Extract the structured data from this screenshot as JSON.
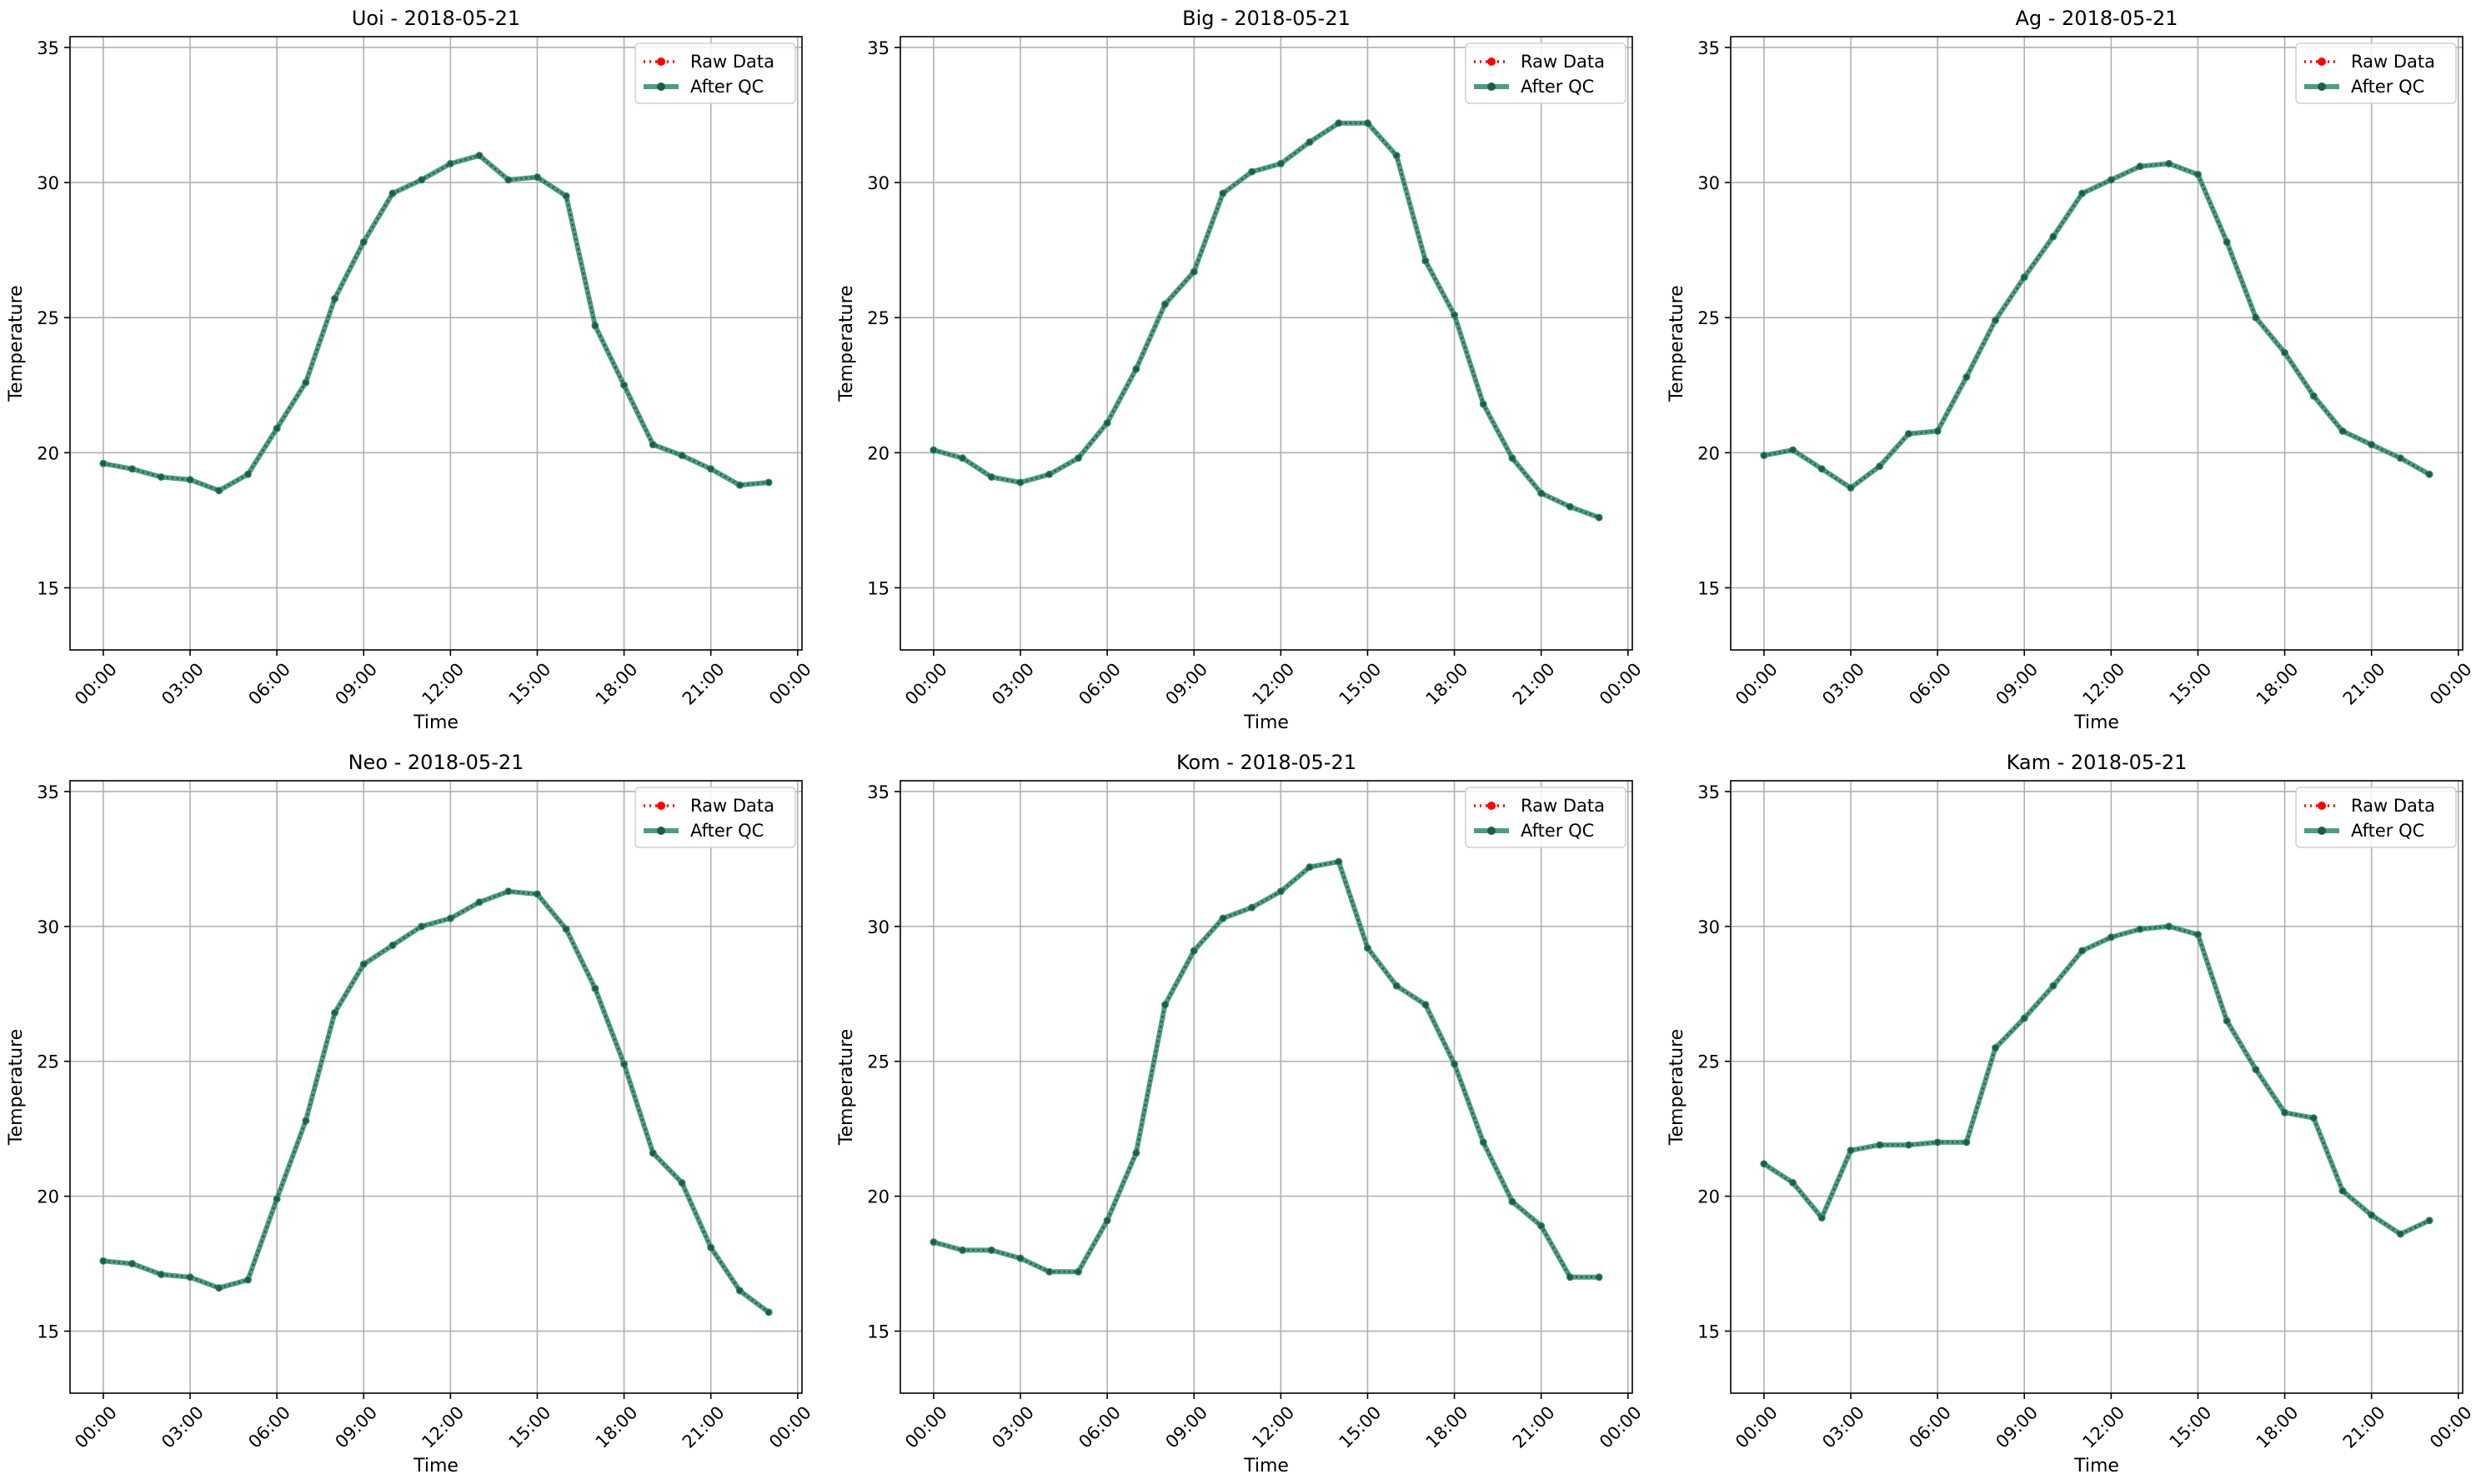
{
  "chart_data": [
    {
      "type": "line",
      "title": "Uoi - 2018-05-21",
      "xlabel": "Time",
      "ylabel": "Temperature",
      "ylim": [
        12.7,
        35.4
      ],
      "yticks": [
        15,
        20,
        25,
        30,
        35
      ],
      "xticks": [
        "00:00",
        "03:00",
        "06:00",
        "09:00",
        "12:00",
        "15:00",
        "18:00",
        "21:00",
        "00:00"
      ],
      "grid": true,
      "legend_position": "top-right",
      "series": [
        {
          "name": "Raw Data",
          "color": "#ff0000",
          "style": "dotted",
          "values": [
            19.6,
            19.4,
            19.1,
            19.0,
            18.6,
            19.2,
            20.9,
            22.6,
            25.7,
            27.8,
            29.6,
            30.1,
            30.7,
            31.0,
            30.1,
            30.2,
            29.5,
            24.7,
            22.5,
            20.3,
            19.9,
            19.4,
            18.8,
            18.9
          ]
        },
        {
          "name": "After QC",
          "color": "#2e8b6e",
          "style": "solid",
          "values": [
            19.6,
            19.4,
            19.1,
            19.0,
            18.6,
            19.2,
            20.9,
            22.6,
            25.7,
            27.8,
            29.6,
            30.1,
            30.7,
            31.0,
            30.1,
            30.2,
            29.5,
            24.7,
            22.5,
            20.3,
            19.9,
            19.4,
            18.8,
            18.9
          ]
        }
      ]
    },
    {
      "type": "line",
      "title": "Big - 2018-05-21",
      "xlabel": "Time",
      "ylabel": "Temperature",
      "ylim": [
        12.7,
        35.4
      ],
      "yticks": [
        15,
        20,
        25,
        30,
        35
      ],
      "xticks": [
        "00:00",
        "03:00",
        "06:00",
        "09:00",
        "12:00",
        "15:00",
        "18:00",
        "21:00",
        "00:00"
      ],
      "grid": true,
      "legend_position": "top-right",
      "series": [
        {
          "name": "Raw Data",
          "color": "#ff0000",
          "style": "dotted",
          "values": [
            20.1,
            19.8,
            19.1,
            18.9,
            19.2,
            19.8,
            21.1,
            23.1,
            25.5,
            26.7,
            29.6,
            30.4,
            30.7,
            31.5,
            32.2,
            32.2,
            31.0,
            27.1,
            25.1,
            21.8,
            19.8,
            18.5,
            18.0,
            17.6
          ]
        },
        {
          "name": "After QC",
          "color": "#2e8b6e",
          "style": "solid",
          "values": [
            20.1,
            19.8,
            19.1,
            18.9,
            19.2,
            19.8,
            21.1,
            23.1,
            25.5,
            26.7,
            29.6,
            30.4,
            30.7,
            31.5,
            32.2,
            32.2,
            31.0,
            27.1,
            25.1,
            21.8,
            19.8,
            18.5,
            18.0,
            17.6
          ]
        }
      ]
    },
    {
      "type": "line",
      "title": "Ag - 2018-05-21",
      "xlabel": "Time",
      "ylabel": "Temperature",
      "ylim": [
        12.7,
        35.4
      ],
      "yticks": [
        15,
        20,
        25,
        30,
        35
      ],
      "xticks": [
        "00:00",
        "03:00",
        "06:00",
        "09:00",
        "12:00",
        "15:00",
        "18:00",
        "21:00",
        "00:00"
      ],
      "grid": true,
      "legend_position": "top-right",
      "series": [
        {
          "name": "Raw Data",
          "color": "#ff0000",
          "style": "dotted",
          "values": [
            19.9,
            20.1,
            19.4,
            18.7,
            19.5,
            20.7,
            20.8,
            22.8,
            24.9,
            26.5,
            28.0,
            29.6,
            30.1,
            30.6,
            30.7,
            30.3,
            27.8,
            25.0,
            23.7,
            22.1,
            20.8,
            20.3,
            19.8,
            19.2
          ]
        },
        {
          "name": "After QC",
          "color": "#2e8b6e",
          "style": "solid",
          "values": [
            19.9,
            20.1,
            19.4,
            18.7,
            19.5,
            20.7,
            20.8,
            22.8,
            24.9,
            26.5,
            28.0,
            29.6,
            30.1,
            30.6,
            30.7,
            30.3,
            27.8,
            25.0,
            23.7,
            22.1,
            20.8,
            20.3,
            19.8,
            19.2
          ]
        }
      ]
    },
    {
      "type": "line",
      "title": "Neo - 2018-05-21",
      "xlabel": "Time",
      "ylabel": "Temperature",
      "ylim": [
        12.7,
        35.4
      ],
      "yticks": [
        15,
        20,
        25,
        30,
        35
      ],
      "xticks": [
        "00:00",
        "03:00",
        "06:00",
        "09:00",
        "12:00",
        "15:00",
        "18:00",
        "21:00",
        "00:00"
      ],
      "grid": true,
      "legend_position": "top-right",
      "series": [
        {
          "name": "Raw Data",
          "color": "#ff0000",
          "style": "dotted",
          "values": [
            17.6,
            17.5,
            17.1,
            17.0,
            16.6,
            16.9,
            19.9,
            22.8,
            26.8,
            28.6,
            29.3,
            30.0,
            30.3,
            30.9,
            31.3,
            31.2,
            29.9,
            27.7,
            24.9,
            21.6,
            20.5,
            18.1,
            16.5,
            15.7
          ]
        },
        {
          "name": "After QC",
          "color": "#2e8b6e",
          "style": "solid",
          "values": [
            17.6,
            17.5,
            17.1,
            17.0,
            16.6,
            16.9,
            19.9,
            22.8,
            26.8,
            28.6,
            29.3,
            30.0,
            30.3,
            30.9,
            31.3,
            31.2,
            29.9,
            27.7,
            24.9,
            21.6,
            20.5,
            18.1,
            16.5,
            15.7
          ]
        }
      ]
    },
    {
      "type": "line",
      "title": "Kom - 2018-05-21",
      "xlabel": "Time",
      "ylabel": "Temperature",
      "ylim": [
        12.7,
        35.4
      ],
      "yticks": [
        15,
        20,
        25,
        30,
        35
      ],
      "xticks": [
        "00:00",
        "03:00",
        "06:00",
        "09:00",
        "12:00",
        "15:00",
        "18:00",
        "21:00",
        "00:00"
      ],
      "grid": true,
      "legend_position": "top-right",
      "series": [
        {
          "name": "Raw Data",
          "color": "#ff0000",
          "style": "dotted",
          "values": [
            18.3,
            18.0,
            18.0,
            17.7,
            17.2,
            17.2,
            19.1,
            21.6,
            27.1,
            29.1,
            30.3,
            30.7,
            31.3,
            32.2,
            32.4,
            29.2,
            27.8,
            27.1,
            24.9,
            22.0,
            19.8,
            18.9,
            17.0,
            17.0
          ]
        },
        {
          "name": "After QC",
          "color": "#2e8b6e",
          "style": "solid",
          "values": [
            18.3,
            18.0,
            18.0,
            17.7,
            17.2,
            17.2,
            19.1,
            21.6,
            27.1,
            29.1,
            30.3,
            30.7,
            31.3,
            32.2,
            32.4,
            29.2,
            27.8,
            27.1,
            24.9,
            22.0,
            19.8,
            18.9,
            17.0,
            17.0
          ]
        }
      ]
    },
    {
      "type": "line",
      "title": "Kam - 2018-05-21",
      "xlabel": "Time",
      "ylabel": "Temperature",
      "ylim": [
        12.7,
        35.4
      ],
      "yticks": [
        15,
        20,
        25,
        30,
        35
      ],
      "xticks": [
        "00:00",
        "03:00",
        "06:00",
        "09:00",
        "12:00",
        "15:00",
        "18:00",
        "21:00",
        "00:00"
      ],
      "grid": true,
      "legend_position": "top-right",
      "series": [
        {
          "name": "Raw Data",
          "color": "#ff0000",
          "style": "dotted",
          "values": [
            21.2,
            20.5,
            19.2,
            21.7,
            21.9,
            21.9,
            22.0,
            22.0,
            25.5,
            26.6,
            27.8,
            29.1,
            29.6,
            29.9,
            30.0,
            29.7,
            26.5,
            24.7,
            23.1,
            22.9,
            20.2,
            19.3,
            18.6,
            19.1
          ]
        },
        {
          "name": "After QC",
          "color": "#2e8b6e",
          "style": "solid",
          "values": [
            21.2,
            20.5,
            19.2,
            21.7,
            21.9,
            21.9,
            22.0,
            22.0,
            25.5,
            26.6,
            27.8,
            29.1,
            29.6,
            29.9,
            30.0,
            29.7,
            26.5,
            24.7,
            23.1,
            22.9,
            20.2,
            19.3,
            18.6,
            19.1
          ]
        }
      ]
    }
  ]
}
